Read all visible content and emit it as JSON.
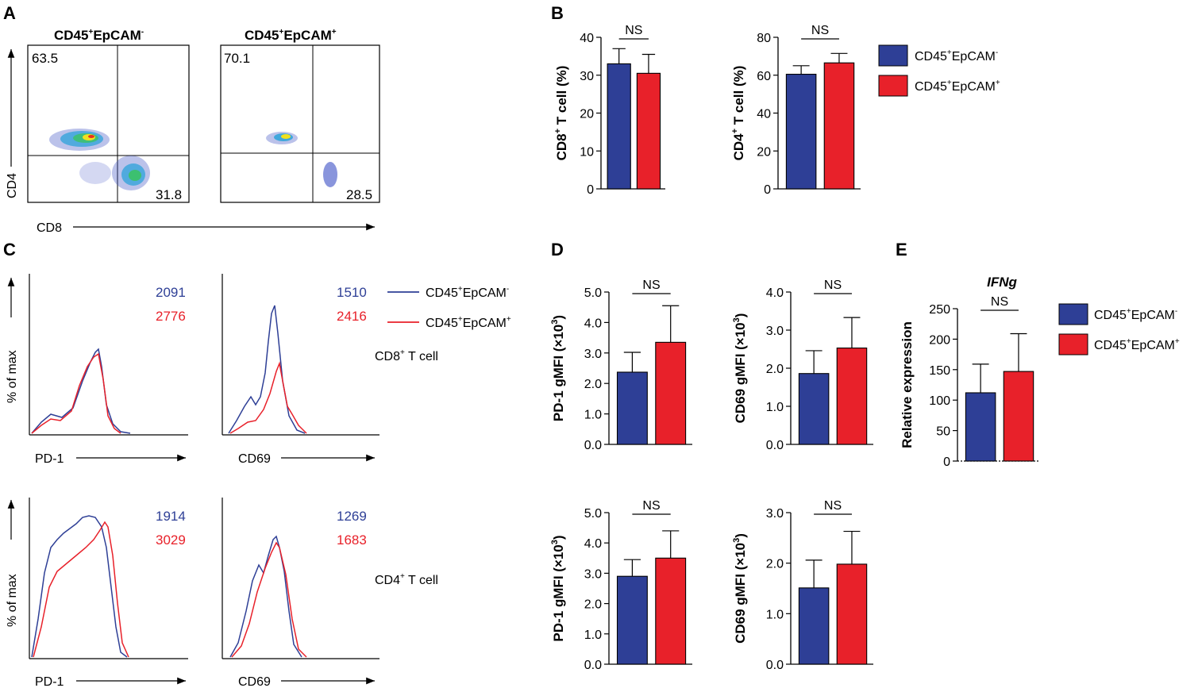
{
  "panel_labels": {
    "a": "A",
    "b": "B",
    "c": "C",
    "d": "D",
    "e": "E"
  },
  "groups": {
    "neg": {
      "base": "CD45",
      "sup1": "+",
      "mid": "EpCAM",
      "sup2": "-",
      "color": "#2e3f96"
    },
    "pos": {
      "base": "CD45",
      "sup1": "+",
      "mid": "EpCAM",
      "sup2": "+",
      "color": "#e8212a"
    }
  },
  "panel_a": {
    "plots": [
      {
        "quadrant_ul": "63.5",
        "quadrant_lr": "31.8"
      },
      {
        "quadrant_ul": "70.1",
        "quadrant_lr": "28.5"
      }
    ],
    "y_axis_label": "CD4",
    "x_axis_label": "CD8"
  },
  "panel_c": {
    "row_labels": [
      {
        "base": "CD8",
        "sup": "+",
        "rest": " T cell"
      },
      {
        "base": "CD4",
        "sup": "+",
        "rest": " T cell"
      }
    ],
    "y_axis_label": "% of max",
    "x_labels": [
      "PD-1",
      "CD69"
    ],
    "gmfi": [
      {
        "neg": "2091",
        "pos": "2776"
      },
      {
        "neg": "1510",
        "pos": "2416"
      },
      {
        "neg": "1914",
        "pos": "3029"
      },
      {
        "neg": "1269",
        "pos": "1683"
      }
    ]
  },
  "chart_data": [
    {
      "id": "b1",
      "type": "bar",
      "categories": [
        "CD45+EpCAM-",
        "CD45+EpCAM+"
      ],
      "values": [
        33,
        30.5
      ],
      "errors": [
        4,
        5
      ],
      "ylim": [
        0,
        40
      ],
      "yticks": [
        "0",
        "10",
        "20",
        "30",
        "40"
      ],
      "ylabel_main": "CD8",
      "ylabel_sup": "+",
      "ylabel_rest": " T cell (%)",
      "sig": "NS"
    },
    {
      "id": "b2",
      "type": "bar",
      "categories": [
        "CD45+EpCAM-",
        "CD45+EpCAM+"
      ],
      "values": [
        60.5,
        66.5
      ],
      "errors": [
        4.5,
        5
      ],
      "ylim": [
        0,
        80
      ],
      "yticks": [
        "0",
        "20",
        "40",
        "60",
        "80"
      ],
      "ylabel_main": "CD4",
      "ylabel_sup": "+",
      "ylabel_rest": " T cell (%)",
      "sig": "NS"
    },
    {
      "id": "d1",
      "type": "bar",
      "categories": [
        "CD45+EpCAM-",
        "CD45+EpCAM+"
      ],
      "values": [
        2.37,
        3.35
      ],
      "errors": [
        0.65,
        1.2
      ],
      "ylim": [
        0,
        5
      ],
      "yticks": [
        "0.0",
        "1.0",
        "2.0",
        "3.0",
        "4.0",
        "5.0"
      ],
      "ylabel_main": "PD-1 gMFI (×10",
      "ylabel_sup": "3",
      "ylabel_rest": ")",
      "sig": "NS"
    },
    {
      "id": "d2",
      "type": "bar",
      "categories": [
        "CD45+EpCAM-",
        "CD45+EpCAM+"
      ],
      "values": [
        1.86,
        2.53
      ],
      "errors": [
        0.6,
        0.8
      ],
      "ylim": [
        0,
        4
      ],
      "yticks": [
        "0.0",
        "1.0",
        "2.0",
        "3.0",
        "4.0"
      ],
      "ylabel_main": "CD69 gMFI (×10",
      "ylabel_sup": "3",
      "ylabel_rest": ")",
      "sig": "NS"
    },
    {
      "id": "d3",
      "type": "bar",
      "categories": [
        "CD45+EpCAM-",
        "CD45+EpCAM+"
      ],
      "values": [
        2.9,
        3.5
      ],
      "errors": [
        0.55,
        0.9
      ],
      "ylim": [
        0,
        5
      ],
      "yticks": [
        "0.0",
        "1.0",
        "2.0",
        "3.0",
        "4.0",
        "5.0"
      ],
      "ylabel_main": "PD-1 gMFI (×10",
      "ylabel_sup": "3",
      "ylabel_rest": ")",
      "sig": "NS"
    },
    {
      "id": "d4",
      "type": "bar",
      "categories": [
        "CD45+EpCAM-",
        "CD45+EpCAM+"
      ],
      "values": [
        1.51,
        1.98
      ],
      "errors": [
        0.55,
        0.65
      ],
      "ylim": [
        0,
        3
      ],
      "yticks": [
        "0.0",
        "1.0",
        "2.0",
        "3.0"
      ],
      "ylabel_main": "CD69 gMFI (×10",
      "ylabel_sup": "3",
      "ylabel_rest": ")",
      "sig": "NS"
    },
    {
      "id": "e1",
      "type": "bar",
      "categories": [
        "CD45+EpCAM-",
        "CD45+EpCAM+"
      ],
      "values": [
        112,
        147
      ],
      "errors": [
        47,
        62
      ],
      "ylim": [
        0,
        250
      ],
      "yticks": [
        "0",
        "50",
        "100",
        "150",
        "200",
        "250"
      ],
      "ylabel_main": "Relative expression",
      "ylabel_sup": "",
      "ylabel_rest": "",
      "title": "IFNg",
      "sig": "NS"
    }
  ]
}
